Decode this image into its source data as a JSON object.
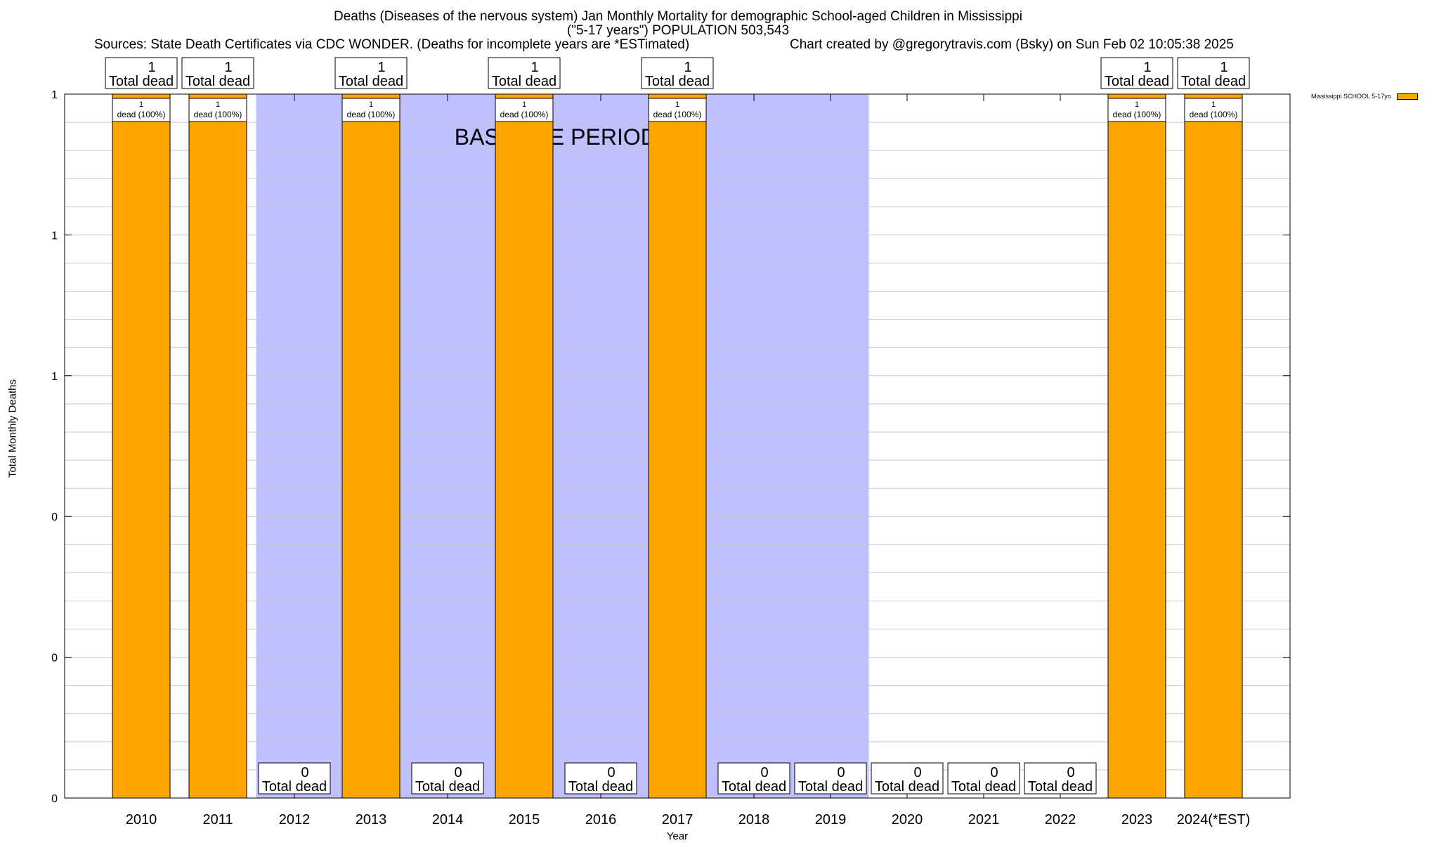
{
  "header": {
    "title_line1": "Deaths (Diseases of the nervous system) Jan Monthly Mortality for demographic School-aged Children in Mississippi",
    "title_line2": "(\"5-17 years\") POPULATION 503,543",
    "sources": "Sources: State Death Certificates via CDC WONDER. (Deaths for incomplete years are *ESTimated)",
    "credit": "Chart created by @gregorytravis.com (Bsky) on Sun Feb 02 10:05:38 2025"
  },
  "legend": {
    "label": "Mississippi SCHOOL 5-17yo"
  },
  "colors": {
    "bar": "#ffa500",
    "baseline": "#c0c0ff",
    "grid": "#c8c8c8"
  },
  "chart_data": {
    "type": "bar",
    "title": "Deaths (Diseases of the nervous system) Jan Monthly Mortality for demographic School-aged Children in Mississippi",
    "xlabel": "Year",
    "ylabel": "Total Monthly Deaths",
    "ylim": [
      0,
      1
    ],
    "y_tick_labels": [
      "0",
      "0",
      "0",
      "1",
      "1",
      "1"
    ],
    "grid": true,
    "legend_position": "top-right",
    "categories": [
      "2010",
      "2011",
      "2012",
      "2013",
      "2014",
      "2015",
      "2016",
      "2017",
      "2018",
      "2019",
      "2020",
      "2021",
      "2022",
      "2023",
      "2024(*EST)"
    ],
    "series": [
      {
        "name": "Mississippi SCHOOL 5-17yo",
        "values": [
          1,
          1,
          0,
          1,
          0,
          1,
          0,
          1,
          0,
          0,
          0,
          0,
          0,
          1,
          1
        ]
      }
    ],
    "total_label_text": "Total dead",
    "pct_label_text": "dead (100%)",
    "baseline_period": {
      "label": "BASELINE PERIOD",
      "start": "2012",
      "end": "2019"
    }
  }
}
